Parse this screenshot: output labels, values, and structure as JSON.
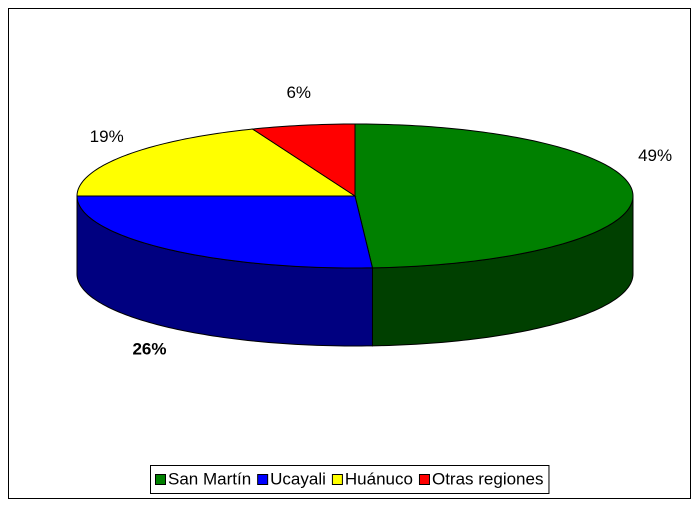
{
  "chart_data": {
    "type": "pie3d",
    "categories": [
      "San Martín",
      "Ucayali",
      "Huánuco",
      "Otras regiones"
    ],
    "values": [
      49,
      26,
      19,
      6
    ],
    "value_labels": [
      "49%",
      "26%",
      "19%",
      "6%"
    ],
    "colors": [
      "#008000",
      "#0000ff",
      "#ffff00",
      "#ff0000"
    ],
    "side_colors": [
      "#004000",
      "#000080",
      "#808000",
      "#800000"
    ],
    "legend": "bottom"
  }
}
